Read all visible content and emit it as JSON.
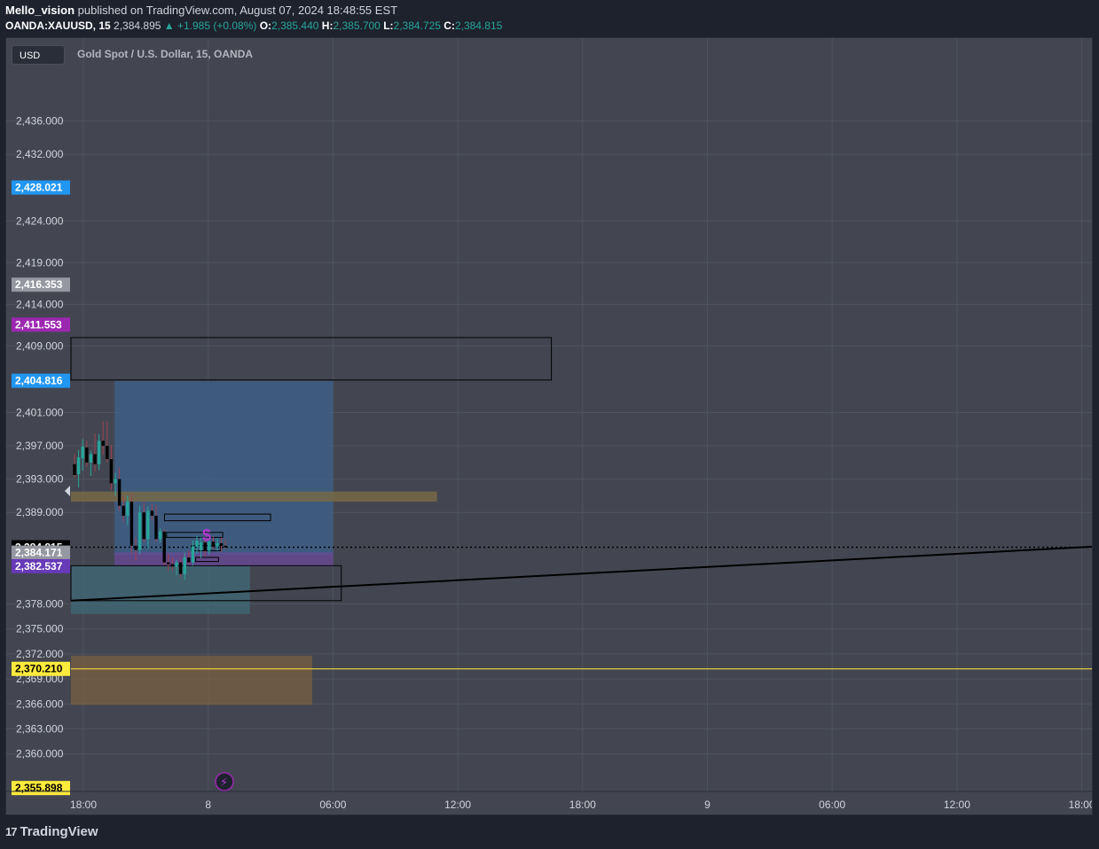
{
  "header": {
    "author": "Mello_vision",
    "published_text": "published on TradingView.com, August 07, 2024 18:48:55 EST",
    "symbol": "OANDA:XAUUSD, 15",
    "last": "2,384.895",
    "change": "▲ +1.985 (+0.08%)",
    "o_label": "O:",
    "o_value": "2,385.440",
    "h_label": "H:",
    "h_value": "2,385.700",
    "l_label": "L:",
    "l_value": "2,384.725",
    "c_label": "C:",
    "c_value": "2,384.815"
  },
  "toolbar": {
    "currency_button": "USD"
  },
  "legend": {
    "title": "Gold Spot / U.S. Dollar, 15, OANDA"
  },
  "footer": {
    "logo_text": "TradingView",
    "logo_mark": "17"
  },
  "colors": {
    "background": "#434651",
    "grid": "#4f535e",
    "up": "#26a69a",
    "down": "#000000",
    "blue_label": "#2196f3",
    "purple_label": "#9c27b0",
    "violet_label": "#673ab7",
    "yellow_label": "#ffeb3b",
    "gray_label": "#9598a1"
  },
  "chart_data": {
    "type": "candlestick",
    "title": "Gold Spot / U.S. Dollar, 15, OANDA",
    "ylim": [
      2354,
      2440
    ],
    "y_ticks": [
      {
        "value": 2436,
        "label": "2,436.000"
      },
      {
        "value": 2432,
        "label": "2,432.000"
      },
      {
        "value": 2424,
        "label": "2,424.000"
      },
      {
        "value": 2419,
        "label": "2,419.000"
      },
      {
        "value": 2414,
        "label": "2,414.000"
      },
      {
        "value": 2409,
        "label": "2,409.000"
      },
      {
        "value": 2401,
        "label": "2,401.000"
      },
      {
        "value": 2397,
        "label": "2,397.000"
      },
      {
        "value": 2393,
        "label": "2,393.000"
      },
      {
        "value": 2389,
        "label": "2,389.000"
      },
      {
        "value": 2378,
        "label": "2,378.000"
      },
      {
        "value": 2375,
        "label": "2,375.000"
      },
      {
        "value": 2372,
        "label": "2,372.000"
      },
      {
        "value": 2369,
        "label": "2,369.000"
      },
      {
        "value": 2366,
        "label": "2,366.000"
      },
      {
        "value": 2363,
        "label": "2,363.000"
      },
      {
        "value": 2360,
        "label": "2,360.000"
      }
    ],
    "x_ticks": [
      {
        "hours": 0,
        "label": "18:00"
      },
      {
        "hours": 6,
        "label": "8"
      },
      {
        "hours": 12,
        "label": "06:00"
      },
      {
        "hours": 18,
        "label": "12:00"
      },
      {
        "hours": 24,
        "label": "18:00"
      },
      {
        "hours": 30,
        "label": "9"
      },
      {
        "hours": 36,
        "label": "06:00"
      },
      {
        "hours": 42,
        "label": "12:00"
      },
      {
        "hours": 48,
        "label": "18:00"
      }
    ],
    "price_labels": [
      {
        "value": 2428.021,
        "label": "2,428.021",
        "color": "#2196f3",
        "text_color": "#ffffff"
      },
      {
        "value": 2416.353,
        "label": "2,416.353",
        "color": "#9598a1",
        "text_color": "#ffffff"
      },
      {
        "value": 2411.553,
        "label": "2,411.553",
        "color": "#9c27b0",
        "text_color": "#ffffff"
      },
      {
        "value": 2404.816,
        "label": "2,404.816",
        "color": "#2196f3",
        "text_color": "#ffffff"
      },
      {
        "value": 2384.815,
        "label": "2,384.815",
        "sub": "11:05",
        "color": "#000000",
        "text_color": "#ffffff"
      },
      {
        "value": 2384.171,
        "label": "2,384.171",
        "color": "#9598a1",
        "text_color": "#ffffff"
      },
      {
        "value": 2382.537,
        "label": "2,382.537",
        "color": "#673ab7",
        "text_color": "#ffffff"
      },
      {
        "value": 2370.21,
        "label": "2,370.210",
        "color": "#ffeb3b",
        "text_color": "#000000"
      },
      {
        "value": 2355.898,
        "label": "2,355.898",
        "color": "#ffeb3b",
        "text_color": "#000000"
      }
    ],
    "current_price": 2384.815,
    "horizontal_line": {
      "value": 2370.21,
      "color": "#ffeb3b"
    },
    "zones": [
      {
        "t0": -0.5,
        "t1": 22.5,
        "top": 2410.0,
        "bottom": 2404.9,
        "fill": "none",
        "stroke": "#000000"
      },
      {
        "t0": 1.5,
        "t1": 12.0,
        "top": 2404.8,
        "bottom": 2383.9,
        "fill": "#3d5f86",
        "opacity": 0.85
      },
      {
        "t0": -0.5,
        "t1": 17.0,
        "top": 2391.5,
        "bottom": 2390.3,
        "fill": "#7a6a45",
        "opacity": 0.8
      },
      {
        "t0": 1.5,
        "t1": 12.0,
        "top": 2384.2,
        "bottom": 2382.5,
        "fill": "#6a4a9a",
        "opacity": 0.75
      },
      {
        "t0": -0.5,
        "t1": 8.0,
        "top": 2382.6,
        "bottom": 2376.8,
        "fill": "#3f6a78",
        "opacity": 0.75
      },
      {
        "t0": -0.5,
        "t1": 11.0,
        "top": 2371.8,
        "bottom": 2365.9,
        "fill": "#7a6040",
        "opacity": 0.75
      },
      {
        "t0": 3.9,
        "t1": 9.0,
        "top": 2388.8,
        "bottom": 2388.0,
        "fill": "none",
        "stroke": "#000000"
      },
      {
        "t0": 4.0,
        "t1": 6.7,
        "top": 2386.6,
        "bottom": 2386.0,
        "fill": "none",
        "stroke": "#000000"
      },
      {
        "t0": 5.2,
        "t1": 6.6,
        "top": 2385.0,
        "bottom": 2384.4,
        "fill": "none",
        "stroke": "#000000"
      },
      {
        "t0": 5.4,
        "t1": 6.5,
        "top": 2383.6,
        "bottom": 2383.1,
        "fill": "none",
        "stroke": "#000000"
      },
      {
        "t0": -0.5,
        "t1": 12.4,
        "top": 2382.6,
        "bottom": 2378.4,
        "fill": "none",
        "stroke": "#000000"
      }
    ],
    "trendline": {
      "t0": -0.5,
      "p0": 2378.4,
      "t1": 48.5,
      "p1": 2384.9,
      "color": "#000000"
    },
    "candles": [
      {
        "o": 2394.8,
        "h": 2396.0,
        "l": 2393.2,
        "c": 2393.5
      },
      {
        "o": 2393.6,
        "h": 2396.5,
        "l": 2392.0,
        "c": 2395.6
      },
      {
        "o": 2395.5,
        "h": 2397.8,
        "l": 2394.0,
        "c": 2396.9
      },
      {
        "o": 2396.8,
        "h": 2397.6,
        "l": 2394.5,
        "c": 2395.0
      },
      {
        "o": 2395.0,
        "h": 2396.4,
        "l": 2393.4,
        "c": 2396.0
      },
      {
        "o": 2396.0,
        "h": 2398.5,
        "l": 2393.9,
        "c": 2394.8
      },
      {
        "o": 2394.8,
        "h": 2398.4,
        "l": 2394.1,
        "c": 2397.6
      },
      {
        "o": 2397.6,
        "h": 2399.9,
        "l": 2395.9,
        "c": 2397.0
      },
      {
        "o": 2397.0,
        "h": 2399.9,
        "l": 2395.0,
        "c": 2395.4
      },
      {
        "o": 2395.4,
        "h": 2397.1,
        "l": 2391.7,
        "c": 2392.5
      },
      {
        "o": 2392.5,
        "h": 2393.8,
        "l": 2391.0,
        "c": 2393.0
      },
      {
        "o": 2393.0,
        "h": 2394.4,
        "l": 2389.2,
        "c": 2389.8
      },
      {
        "o": 2389.8,
        "h": 2391.0,
        "l": 2387.9,
        "c": 2388.6
      },
      {
        "o": 2388.6,
        "h": 2391.0,
        "l": 2387.5,
        "c": 2390.3
      },
      {
        "o": 2390.3,
        "h": 2391.2,
        "l": 2384.0,
        "c": 2385.0
      },
      {
        "o": 2385.0,
        "h": 2386.0,
        "l": 2383.2,
        "c": 2384.5
      },
      {
        "o": 2384.5,
        "h": 2389.8,
        "l": 2384.0,
        "c": 2389.0
      },
      {
        "o": 2389.0,
        "h": 2390.2,
        "l": 2385.4,
        "c": 2385.8
      },
      {
        "o": 2385.8,
        "h": 2389.7,
        "l": 2384.6,
        "c": 2389.2
      },
      {
        "o": 2389.2,
        "h": 2390.1,
        "l": 2388.0,
        "c": 2388.6
      },
      {
        "o": 2388.6,
        "h": 2389.9,
        "l": 2385.4,
        "c": 2385.8
      },
      {
        "o": 2385.8,
        "h": 2387.1,
        "l": 2385.4,
        "c": 2386.7
      },
      {
        "o": 2386.7,
        "h": 2387.0,
        "l": 2382.7,
        "c": 2383.0
      },
      {
        "o": 2383.0,
        "h": 2384.0,
        "l": 2382.0,
        "c": 2382.8
      },
      {
        "o": 2382.8,
        "h": 2383.6,
        "l": 2382.0,
        "c": 2382.5
      },
      {
        "o": 2382.5,
        "h": 2383.3,
        "l": 2381.5,
        "c": 2383.0
      },
      {
        "o": 2383.0,
        "h": 2383.4,
        "l": 2381.2,
        "c": 2381.6
      },
      {
        "o": 2381.6,
        "h": 2384.2,
        "l": 2380.9,
        "c": 2383.6
      },
      {
        "o": 2383.6,
        "h": 2384.4,
        "l": 2382.8,
        "c": 2383.0
      },
      {
        "o": 2383.0,
        "h": 2385.6,
        "l": 2382.6,
        "c": 2384.9
      },
      {
        "o": 2384.9,
        "h": 2386.2,
        "l": 2384.0,
        "c": 2385.6
      },
      {
        "o": 2384.5,
        "h": 2386.0,
        "l": 2383.5,
        "c": 2385.4
      },
      {
        "o": 2385.4,
        "h": 2386.0,
        "l": 2383.8,
        "c": 2384.4
      },
      {
        "o": 2384.4,
        "h": 2385.8,
        "l": 2383.9,
        "c": 2385.5
      },
      {
        "o": 2385.5,
        "h": 2386.1,
        "l": 2384.6,
        "c": 2384.9
      },
      {
        "o": 2384.9,
        "h": 2385.9,
        "l": 2384.4,
        "c": 2385.3
      },
      {
        "o": 2385.3,
        "h": 2386.0,
        "l": 2384.3,
        "c": 2385.0
      },
      {
        "o": 2385.0,
        "h": 2385.7,
        "l": 2384.7,
        "c": 2384.8
      }
    ]
  }
}
